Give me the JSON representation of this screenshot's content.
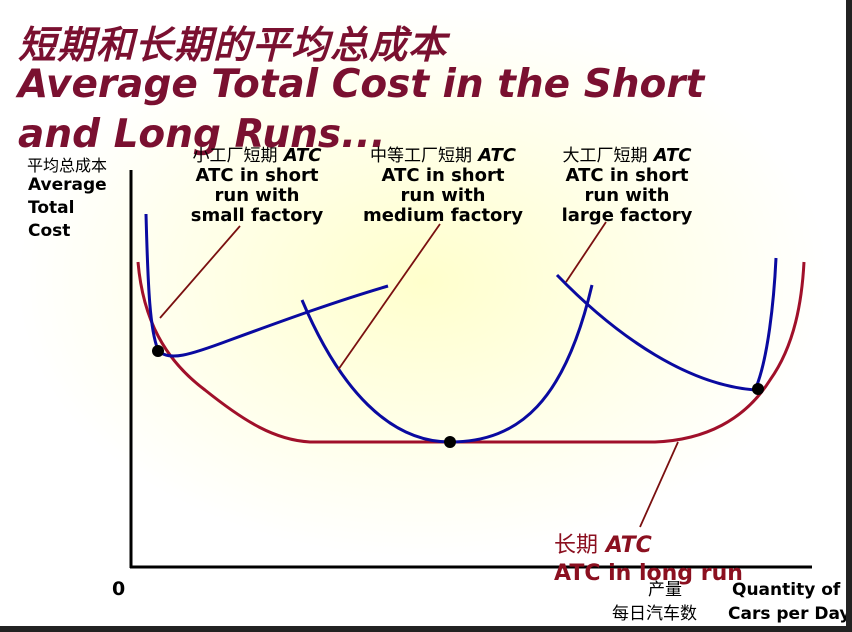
{
  "title": {
    "cn": "短期和长期的平均总成本",
    "en_line1": "Average Total Cost in the Short",
    "en_line2": "and Long Runs..."
  },
  "y_axis": {
    "label_cn": "平均总成本",
    "label_en": [
      "Average",
      "Total",
      "Cost"
    ]
  },
  "origin": "0",
  "x_axis": {
    "label_cn": [
      "产量",
      "每日汽车数"
    ],
    "label_en": [
      "Quantity of",
      "Cars per Day"
    ]
  },
  "curves": {
    "small": {
      "cn": "小工厂短期",
      "atc": "ATC",
      "line1": "ATC in short",
      "line2": "run with",
      "line3": "small factory"
    },
    "medium": {
      "cn": "中等工厂短期",
      "atc": "ATC",
      "line1": "ATC in short",
      "line2": "run with",
      "line3": "medium factory"
    },
    "large": {
      "cn": "大工厂短期",
      "atc": "ATC",
      "line1": "ATC in short",
      "line2": "run with",
      "line3": "large factory"
    },
    "long_run": {
      "cn": "长期",
      "atc": "ATC",
      "line2": "ATC in long run"
    }
  },
  "colors": {
    "title": "#7a1030",
    "short_run_curve": "#0a0aa0",
    "long_run_curve": "#a0102a",
    "pointer_line": "#7a1010",
    "axis": "#000000"
  }
}
